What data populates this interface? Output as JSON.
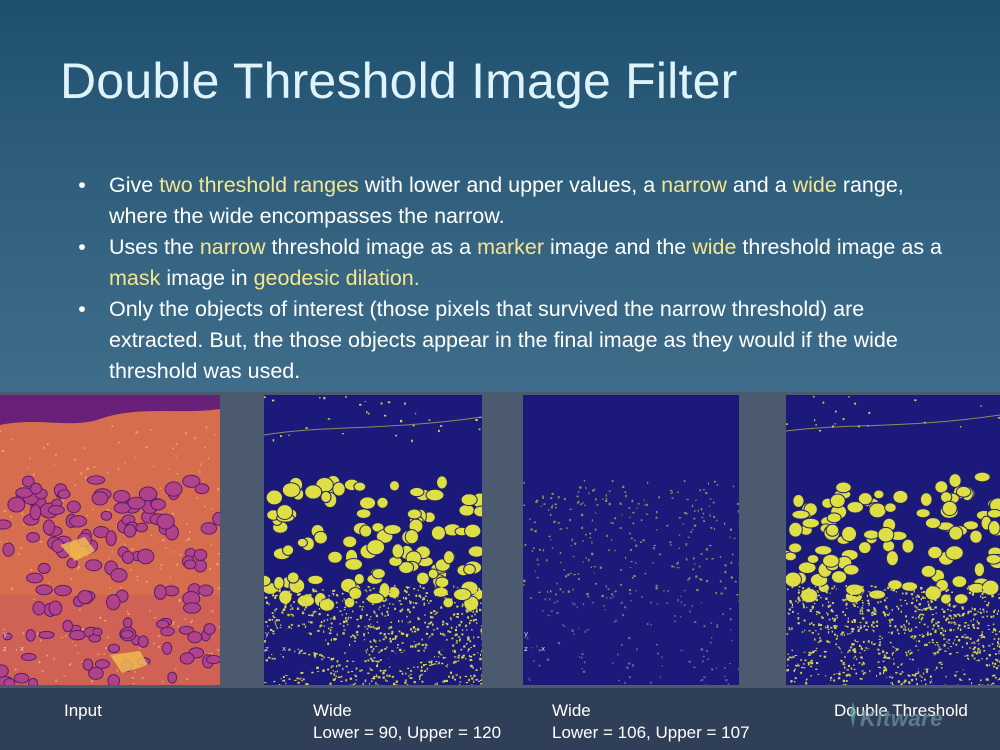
{
  "slide": {
    "title": "Double Threshold Image Filter",
    "colors": {
      "highlight": "#f6e58e",
      "title": "#dff3fb",
      "text": "#ffffff"
    },
    "bullets": [
      [
        {
          "t": "Give ",
          "h": false
        },
        {
          "t": "two threshold ranges",
          "h": true
        },
        {
          "t": " with lower and upper values, a ",
          "h": false
        },
        {
          "t": "narrow",
          "h": true
        },
        {
          "t": " and a ",
          "h": false
        },
        {
          "t": "wide",
          "h": true
        },
        {
          "t": " range, where the wide encompasses the narrow.",
          "h": false
        }
      ],
      [
        {
          "t": "Uses the ",
          "h": false
        },
        {
          "t": "narrow",
          "h": true
        },
        {
          "t": " threshold image as a ",
          "h": false
        },
        {
          "t": "marker",
          "h": true
        },
        {
          "t": " image and the ",
          "h": false
        },
        {
          "t": "wide",
          "h": true
        },
        {
          "t": " threshold image as a ",
          "h": false
        },
        {
          "t": "mask",
          "h": true
        },
        {
          "t": " image in ",
          "h": false
        },
        {
          "t": "geodesic dilation.",
          "h": true
        }
      ],
      [
        {
          "t": "Only the objects of interest (those pixels that survived the narrow threshold) are extracted. But, the those objects appear in the final image as they would if the wide threshold was used.",
          "h": false
        }
      ]
    ],
    "bullet_symbol": "•",
    "captions": {
      "input": "Input",
      "wide1_title": "Wide",
      "wide1_range": "Lower = 90, Upper = 120",
      "wide2_title": "Wide",
      "wide2_range": "Lower = 106, Upper = 107",
      "double": "Double Threshold"
    },
    "axis_labels": {
      "y": "y",
      "z": "z",
      "x": "x"
    },
    "logo_text": "Kitware"
  }
}
